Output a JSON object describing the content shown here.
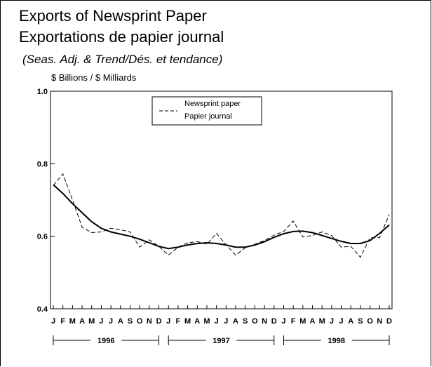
{
  "header": {
    "title": "Exports of Newsprint Paper",
    "subtitle": "Exportations de papier journal",
    "note": "(Seas. Adj. & Trend/Dés. et tendance)"
  },
  "chart_data": {
    "type": "line",
    "title": "Exports of Newsprint Paper",
    "ylabel": "$ Billions / $ Milliards",
    "ylim": [
      0.4,
      1.0
    ],
    "yticks": [
      "1.0",
      "0.8",
      "0.6",
      "0.4"
    ],
    "month_labels": [
      "J",
      "F",
      "M",
      "A",
      "M",
      "J",
      "J",
      "A",
      "S",
      "O",
      "N",
      "D",
      "J",
      "F",
      "M",
      "A",
      "M",
      "J",
      "J",
      "A",
      "S",
      "O",
      "N",
      "D",
      "J",
      "F",
      "M",
      "A",
      "M",
      "J",
      "J",
      "A",
      "S",
      "O",
      "N",
      "D"
    ],
    "year_labels": [
      "1996",
      "1997",
      "1998"
    ],
    "legend": {
      "line1": "Newsprint paper",
      "line2": "Papier journal",
      "position": "top-center"
    },
    "series": [
      {
        "name": "Newsprint paper / Papier journal",
        "style": "dashed",
        "values": [
          0.74,
          0.772,
          0.7,
          0.625,
          0.61,
          0.612,
          0.622,
          0.618,
          0.612,
          0.57,
          0.59,
          0.572,
          0.548,
          0.57,
          0.582,
          0.585,
          0.578,
          0.608,
          0.577,
          0.548,
          0.568,
          0.578,
          0.588,
          0.603,
          0.613,
          0.642,
          0.598,
          0.602,
          0.612,
          0.602,
          0.57,
          0.572,
          0.542,
          0.596,
          0.596,
          0.66
        ]
      },
      {
        "name": "Trend",
        "style": "solid",
        "values": [
          0.742,
          0.718,
          0.69,
          0.665,
          0.64,
          0.622,
          0.612,
          0.606,
          0.6,
          0.592,
          0.582,
          0.572,
          0.566,
          0.57,
          0.576,
          0.58,
          0.582,
          0.58,
          0.576,
          0.57,
          0.57,
          0.576,
          0.585,
          0.597,
          0.607,
          0.613,
          0.614,
          0.61,
          0.602,
          0.594,
          0.586,
          0.58,
          0.58,
          0.588,
          0.608,
          0.631
        ]
      }
    ]
  }
}
